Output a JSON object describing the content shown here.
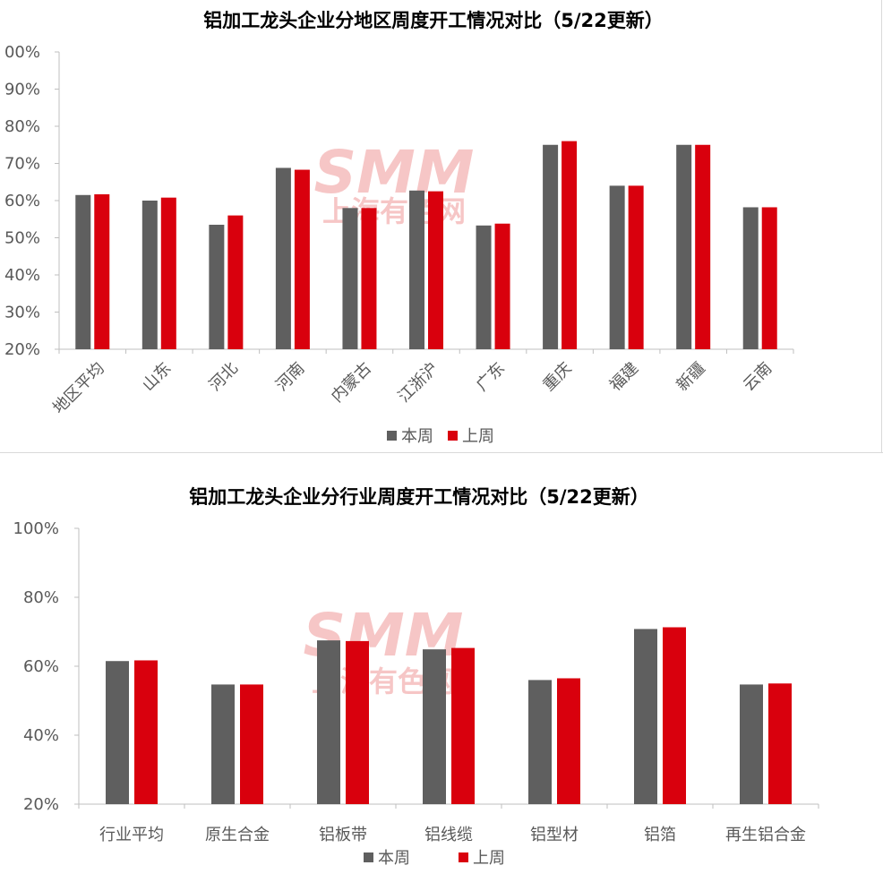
{
  "colors": {
    "this_week": "#5f5f5f",
    "last_week": "#d9000d",
    "axis": "#bfbfbf",
    "watermark": "#f4b4b4"
  },
  "watermark": {
    "logo": "SMM",
    "text": "上海有色网"
  },
  "chart_data": [
    {
      "type": "bar",
      "title": "铝加工龙头企业分地区周度开工情况对比（5/22更新）",
      "categories": [
        "地区平均",
        "山东",
        "河北",
        "河南",
        "内蒙古",
        "江浙沪",
        "广东",
        "重庆",
        "福建",
        "新疆",
        "云南"
      ],
      "series": [
        {
          "name": "本周",
          "values": [
            61.5,
            60.0,
            53.5,
            68.8,
            58.0,
            62.7,
            53.3,
            75.0,
            64.0,
            75.0,
            58.2
          ]
        },
        {
          "name": "上周",
          "values": [
            61.7,
            60.8,
            56.0,
            68.3,
            58.0,
            62.5,
            53.8,
            76.0,
            64.0,
            75.0,
            58.2
          ]
        }
      ],
      "ylim": [
        20,
        100
      ],
      "yticks": [
        "00%",
        "90%",
        "80%",
        "70%",
        "60%",
        "50%",
        "40%",
        "30%",
        "20%"
      ],
      "legend_position": "bottom",
      "grid": false
    },
    {
      "type": "bar",
      "title": "铝加工龙头企业分行业周度开工情况对比（5/22更新）",
      "categories": [
        "行业平均",
        "原生合金",
        "铝板带",
        "铝线缆",
        "铝型材",
        "铝箔",
        "再生铝合金"
      ],
      "series": [
        {
          "name": "本周",
          "values": [
            61.5,
            54.7,
            67.5,
            64.9,
            56.0,
            70.8,
            54.7
          ]
        },
        {
          "name": "上周",
          "values": [
            61.7,
            54.7,
            67.3,
            65.3,
            56.5,
            71.3,
            55.0
          ]
        }
      ],
      "ylim": [
        20,
        100
      ],
      "yticks": [
        "100%",
        "80%",
        "60%",
        "40%",
        "20%"
      ],
      "legend_position": "bottom",
      "grid": false
    }
  ]
}
